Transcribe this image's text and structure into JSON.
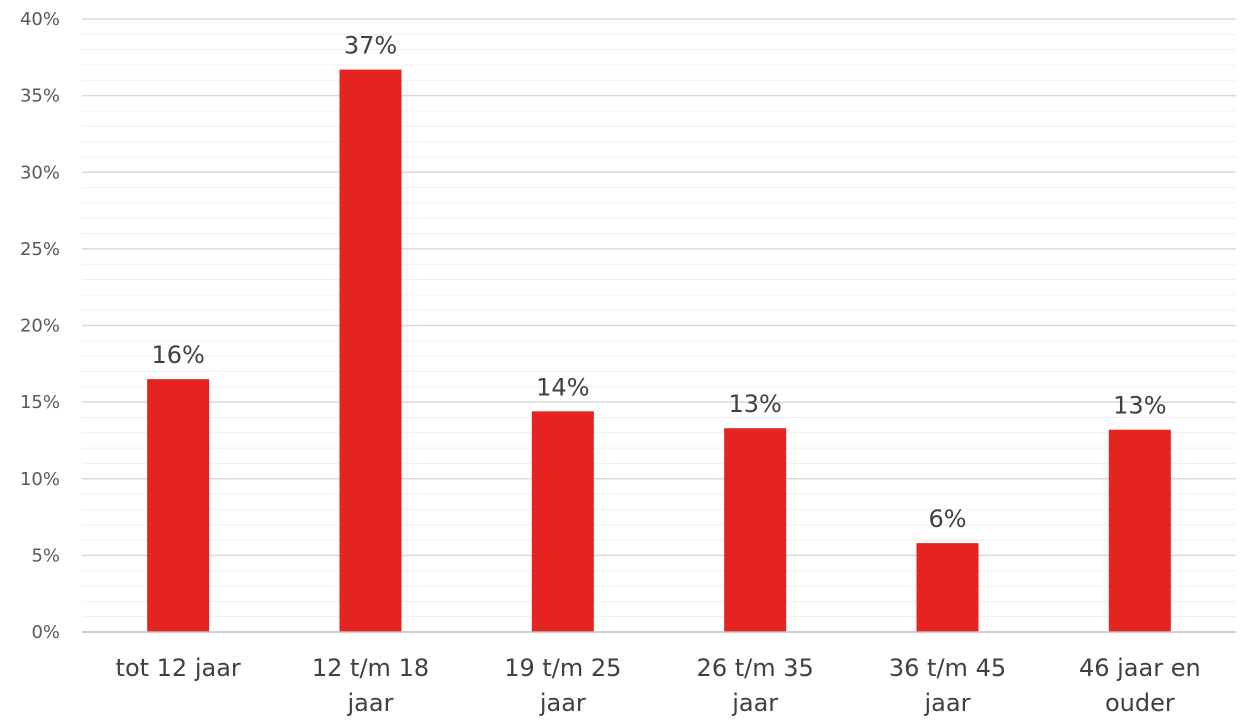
{
  "chart_data": {
    "type": "bar",
    "categories": [
      [
        "tot 12 jaar"
      ],
      [
        "12 t/m 18",
        "jaar"
      ],
      [
        "19 t/m 25",
        "jaar"
      ],
      [
        "26 t/m 35",
        "jaar"
      ],
      [
        "36 t/m 45",
        "jaar"
      ],
      [
        "46 jaar en",
        "ouder"
      ]
    ],
    "values": [
      16.5,
      36.7,
      14.4,
      13.3,
      5.8,
      13.2
    ],
    "data_labels": [
      "16%",
      "37%",
      "14%",
      "13%",
      "6%",
      "13%"
    ],
    "y_ticks": [
      "0%",
      "5%",
      "10%",
      "15%",
      "20%",
      "25%",
      "30%",
      "35%",
      "40%"
    ],
    "ylim": [
      0,
      40
    ],
    "major_step": 5,
    "minor_step": 1,
    "grid": true,
    "legend": "none",
    "bar_color": "#e52421"
  }
}
